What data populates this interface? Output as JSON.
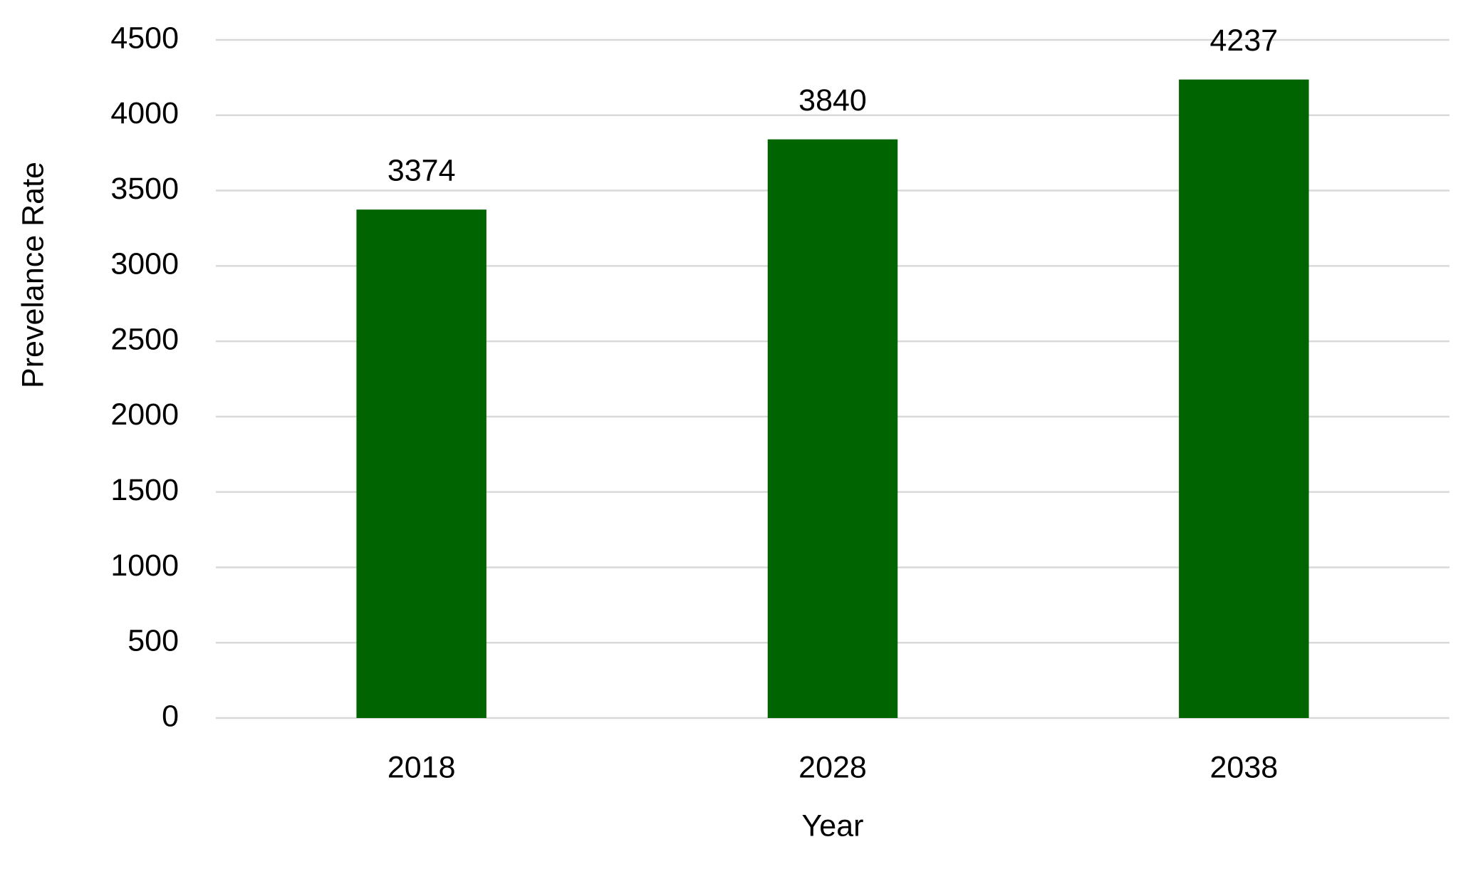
{
  "chart_data": {
    "type": "bar",
    "xlabel": "Year",
    "ylabel": "Prevelance Rate",
    "categories": [
      "2018",
      "2028",
      "2038"
    ],
    "values": [
      3374,
      3840,
      4237
    ],
    "color": "#006400",
    "ylim": [
      0,
      4500
    ],
    "yticks": [
      0,
      500,
      1000,
      1500,
      2000,
      2500,
      3000,
      3500,
      4000,
      4500
    ],
    "grid": true
  }
}
